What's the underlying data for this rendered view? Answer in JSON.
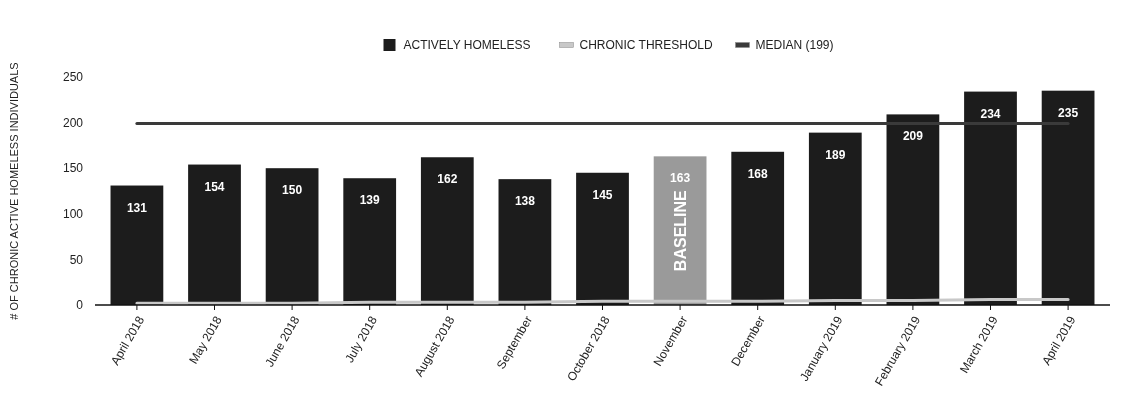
{
  "chart_data": {
    "type": "bar",
    "ylabel": "# OF CHRONIC ACTIVE HOMELESS INDIVIDUALS",
    "categories": [
      "April 2018",
      "May 2018",
      "June 2018",
      "July 2018",
      "August 2018",
      "September",
      "October 2018",
      "November",
      "December",
      "January 2019",
      "February 2019",
      "March 2019",
      "April 2019"
    ],
    "series": [
      {
        "name": "ACTIVELY HOMELESS",
        "color": "#1c1c1c",
        "colors": [
          "#1c1c1c",
          "#1c1c1c",
          "#1c1c1c",
          "#1c1c1c",
          "#1c1c1c",
          "#1c1c1c",
          "#1c1c1c",
          "#9a9a9a",
          "#1c1c1c",
          "#1c1c1c",
          "#1c1c1c",
          "#1c1c1c",
          "#1c1c1c"
        ],
        "values": [
          131,
          154,
          150,
          139,
          162,
          138,
          145,
          163,
          168,
          189,
          209,
          234,
          235
        ],
        "value_labels": [
          "131",
          "154",
          "150",
          "139",
          "162",
          "138",
          "145",
          "163",
          "168",
          "189",
          "209",
          "234",
          "235"
        ]
      },
      {
        "name": "CHRONIC THRESHOLD",
        "type": "line",
        "color": "#c8c8c8",
        "values": [
          2,
          2,
          2,
          3,
          3,
          3,
          4,
          4,
          4,
          5,
          5,
          6,
          6
        ]
      },
      {
        "name": "MEDIAN (199)",
        "type": "line",
        "color": "#3a3a3a",
        "values": [
          199,
          199,
          199,
          199,
          199,
          199,
          199,
          199,
          199,
          199,
          199,
          199,
          199
        ]
      }
    ],
    "annotations": [
      "BASELINE"
    ],
    "ylim": [
      0,
      250
    ],
    "yticks": [
      0,
      50,
      100,
      150,
      200,
      250
    ],
    "grid": false,
    "legend": "top"
  }
}
